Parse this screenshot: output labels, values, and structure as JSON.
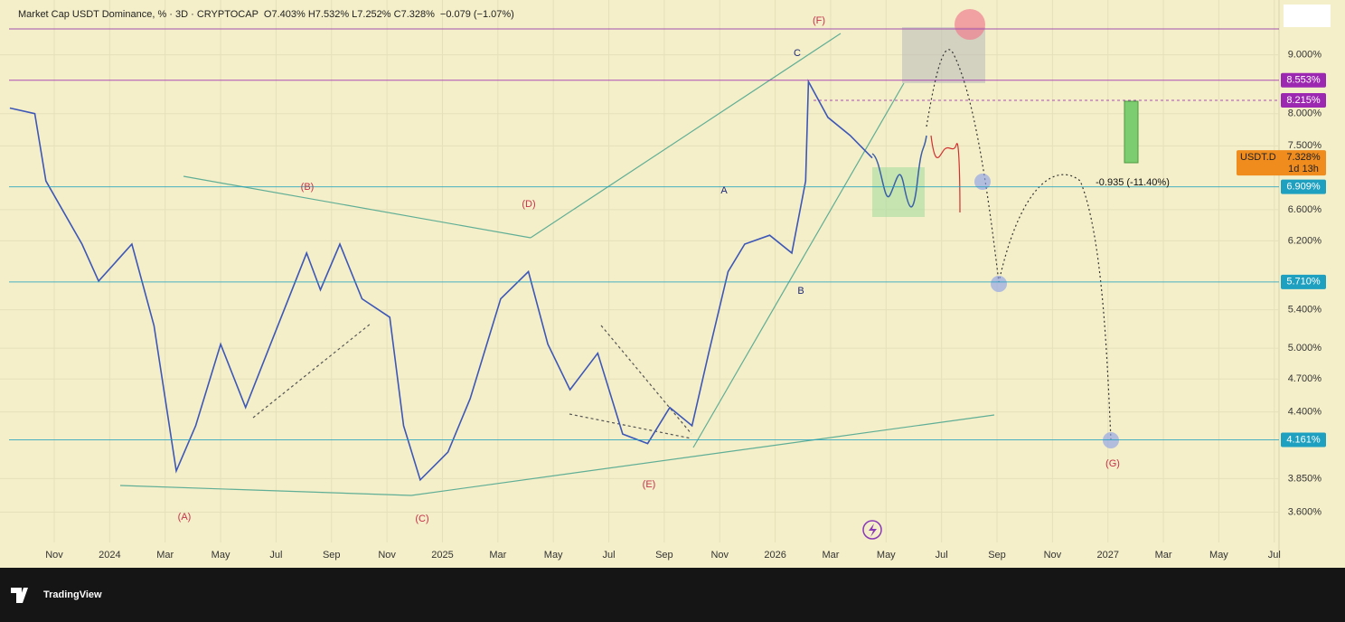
{
  "header": {
    "symbol": "Market Cap USDT Dominance, % · 3D · CRYPTOCAP",
    "ohlc": "O7.403% H7.532% L7.252% C7.328%",
    "change": "−0.079 (−1.07%)"
  },
  "chart_data": {
    "type": "line",
    "color": "#3d57b8",
    "x": [
      -1.6,
      -0.7,
      -0.3,
      1.0,
      1.6,
      2.8,
      3.6,
      4.4,
      5.1,
      6.0,
      6.9,
      7.8,
      9.1,
      9.6,
      10.3,
      11.1,
      12.1,
      12.6,
      13.2,
      14.2,
      15.0,
      16.1,
      17.1,
      17.8,
      18.6,
      19.6,
      20.5,
      21.4,
      22.2,
      23.0,
      23.6,
      24.3,
      24.9,
      25.8,
      26.6,
      27.1,
      27.2,
      27.9,
      28.7,
      29.5
    ],
    "values": [
      8.09,
      8.0,
      6.99,
      6.16,
      5.72,
      6.16,
      5.23,
      3.91,
      4.28,
      5.04,
      4.44,
      5.04,
      6.05,
      5.62,
      6.16,
      5.52,
      5.32,
      4.28,
      3.84,
      4.06,
      4.52,
      5.52,
      5.83,
      5.04,
      4.6,
      4.95,
      4.21,
      4.13,
      4.44,
      4.28,
      4.95,
      5.83,
      6.16,
      6.27,
      6.05,
      6.99,
      8.53,
      7.94,
      7.66,
      7.32
    ],
    "xlim": [
      -1.63,
      44.17
    ],
    "xticks": [
      {
        "value": 0,
        "label": "Nov"
      },
      {
        "value": 2,
        "label": "2024"
      },
      {
        "value": 4,
        "label": "Mar"
      },
      {
        "value": 6,
        "label": "May"
      },
      {
        "value": 8,
        "label": "Jul"
      },
      {
        "value": 10,
        "label": "Sep"
      },
      {
        "value": 12,
        "label": "Nov"
      },
      {
        "value": 14,
        "label": "2025"
      },
      {
        "value": 16,
        "label": "Mar"
      },
      {
        "value": 18,
        "label": "May"
      },
      {
        "value": 20,
        "label": "Jul"
      },
      {
        "value": 22,
        "label": "Sep"
      },
      {
        "value": 24,
        "label": "Nov"
      },
      {
        "value": 26,
        "label": "2026"
      },
      {
        "value": 28,
        "label": "Mar"
      },
      {
        "value": 30,
        "label": "May"
      },
      {
        "value": 32,
        "label": "Jul"
      },
      {
        "value": 34,
        "label": "Sep"
      },
      {
        "value": 36,
        "label": "Nov"
      },
      {
        "value": 38,
        "label": "2027"
      },
      {
        "value": 40,
        "label": "Mar"
      },
      {
        "value": 42,
        "label": "May"
      },
      {
        "value": 44,
        "label": "Jul"
      }
    ],
    "ylim": [
      3.4,
      9.48
    ],
    "log_scale": true,
    "grid": true,
    "yticks": [
      {
        "value": 9,
        "label": "9.000%"
      },
      {
        "value": 8,
        "label": "8.000%"
      },
      {
        "value": 7.5,
        "label": "7.500%"
      },
      {
        "value": 6.6,
        "label": "6.600%"
      },
      {
        "value": 6.2,
        "label": "6.200%"
      },
      {
        "value": 5.4,
        "label": "5.400%"
      },
      {
        "value": 5,
        "label": "5.000%"
      },
      {
        "value": 4.7,
        "label": "4.700%"
      },
      {
        "value": 4.4,
        "label": "4.400%"
      },
      {
        "value": 3.85,
        "label": "3.850%"
      },
      {
        "value": 3.6,
        "label": "3.600%"
      }
    ],
    "price_tags": [
      {
        "value": 8.553,
        "label": "8.553%",
        "color": "#9c27b0"
      },
      {
        "value": 8.215,
        "label": "8.215%",
        "color": "#9c27b0"
      },
      {
        "value": 6.909,
        "label": "6.909%",
        "color": "#1ea0c0"
      },
      {
        "value": 5.71,
        "label": "5.710%",
        "color": "#1ea0c0"
      },
      {
        "value": 4.161,
        "label": "4.161%",
        "color": "#1ea0c0"
      }
    ],
    "last_price": {
      "name": "USDT.D",
      "value": 7.328,
      "label": "7.328%",
      "countdown": "1d 13h",
      "color": "#f08c1e"
    },
    "annotations": [
      "(A)",
      "(B)",
      "(C)",
      "(D)",
      "(E)",
      "(F)",
      "(G)",
      "A",
      "B",
      "C",
      "-0.935 (-11.40%)"
    ]
  },
  "footer": {
    "brand": "TradingView"
  }
}
